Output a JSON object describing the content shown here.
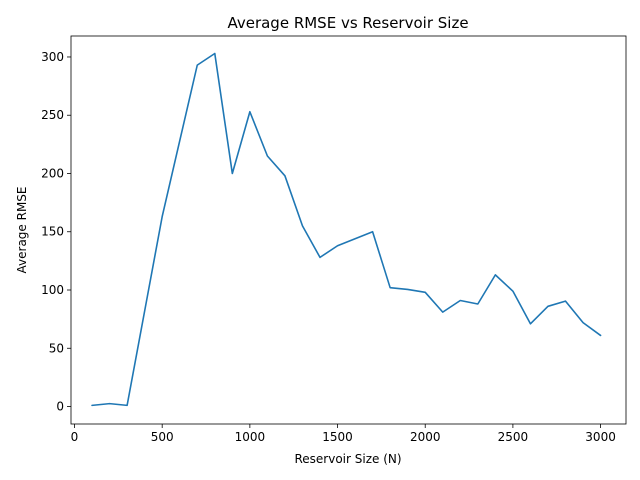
{
  "chart_data": {
    "type": "line",
    "title": "Average RMSE vs Reservoir Size",
    "xlabel": "Reservoir Size (N)",
    "ylabel": "Average RMSE",
    "xlim": [
      -20,
      3145
    ],
    "ylim": [
      -15,
      318
    ],
    "xticks": [
      0,
      500,
      1000,
      1500,
      2000,
      2500,
      3000
    ],
    "yticks": [
      0,
      50,
      100,
      150,
      200,
      250,
      300
    ],
    "grid": false,
    "series": [
      {
        "color": "#1f77b4",
        "x": [
          100,
          200,
          300,
          400,
          500,
          600,
          700,
          800,
          900,
          1000,
          1100,
          1200,
          1300,
          1400,
          1500,
          1600,
          1700,
          1800,
          1900,
          2000,
          2100,
          2200,
          2300,
          2400,
          2500,
          2600,
          2700,
          2800,
          2900,
          3000
        ],
        "y": [
          1,
          2.5,
          1,
          82,
          163,
          228,
          293,
          303,
          200,
          253,
          215,
          198,
          155,
          128,
          138,
          144,
          150,
          102,
          100.5,
          98,
          81,
          91,
          88,
          113,
          99,
          71,
          86,
          90.5,
          72,
          61
        ]
      }
    ]
  }
}
